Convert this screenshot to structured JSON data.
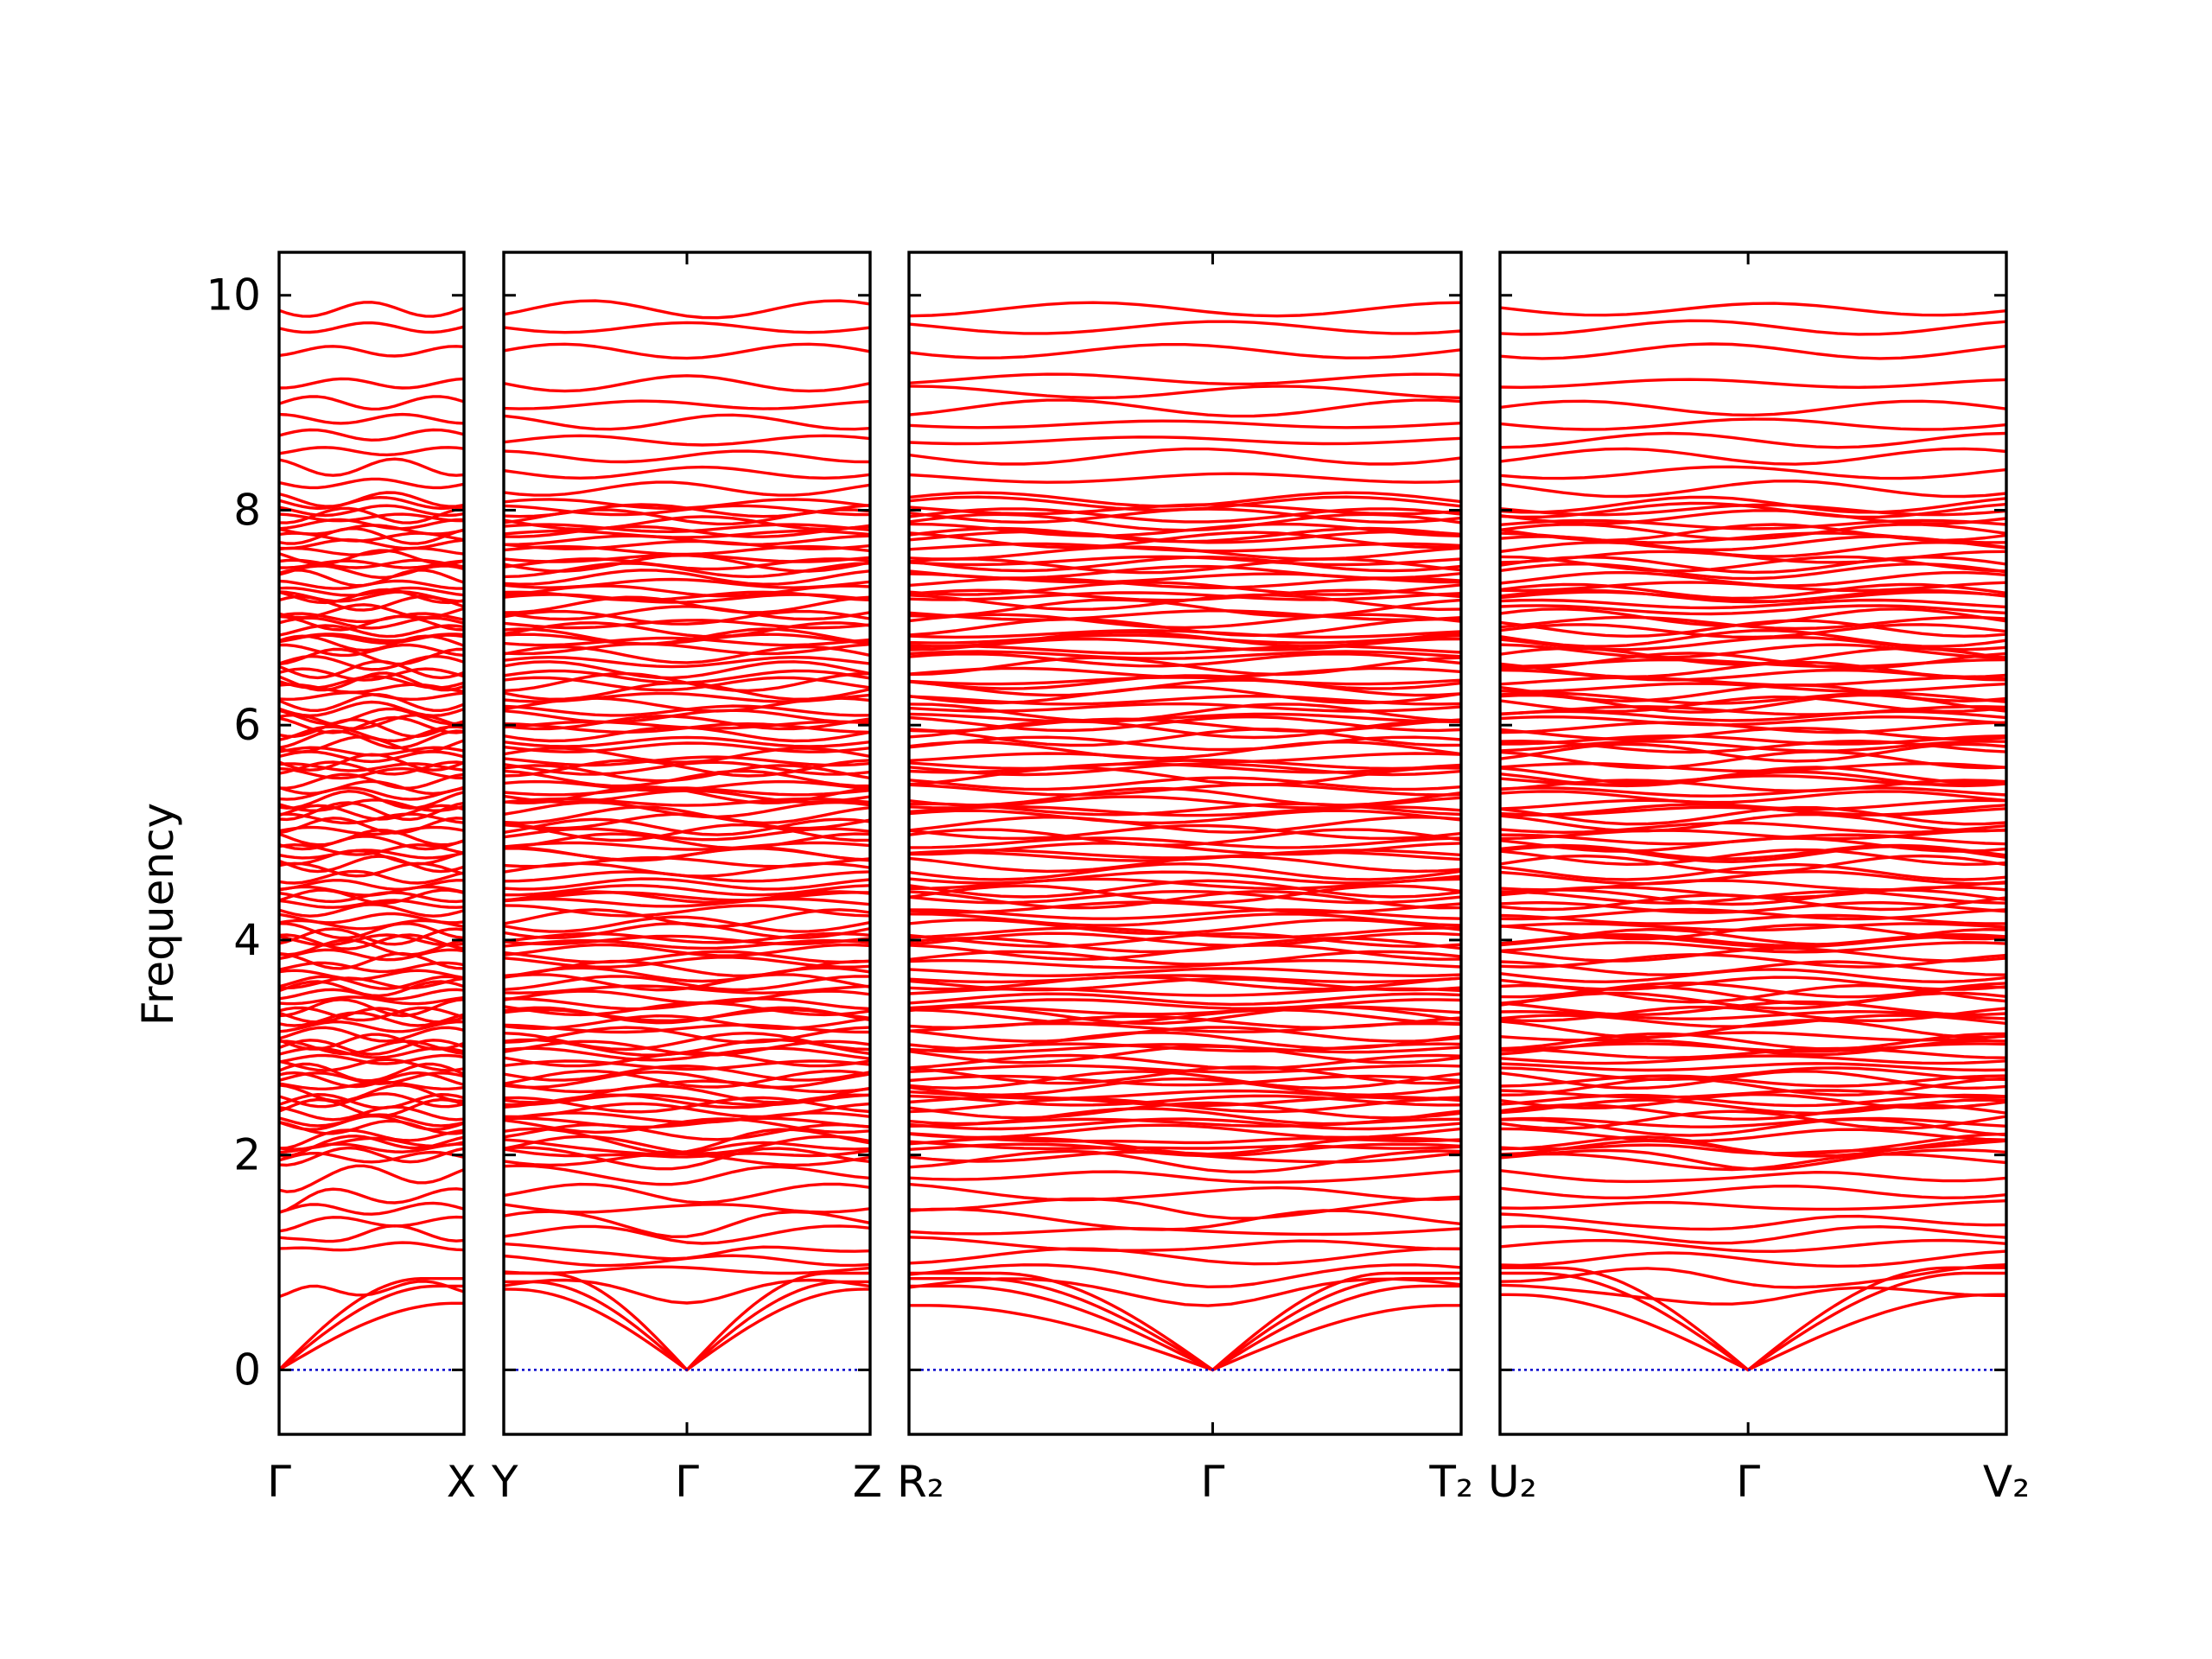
{
  "chart_data": {
    "type": "line",
    "ylabel": "Frequency",
    "ylim": [
      -0.6,
      10.4
    ],
    "yticks": [
      0,
      2,
      4,
      6,
      8,
      10
    ],
    "grid": false,
    "line_color": "#ff0000",
    "zero_line_color": "#0000cc",
    "panels": [
      {
        "labels": [
          "Γ",
          "X"
        ],
        "tick_positions": [
          0,
          1
        ],
        "acoustic_endpoints": [
          0.62,
          0.78,
          0.85
        ],
        "optical": [
          0.76,
          1.15,
          1.27,
          1.38,
          1.5,
          1.62,
          1.82,
          1.98,
          2.12,
          2.3,
          2.5,
          2.7,
          3.0,
          3.3,
          3.6,
          4.0,
          4.4,
          4.8,
          5.2,
          5.6,
          6.0,
          6.4,
          6.8,
          6.95,
          7.2,
          7.5,
          7.75,
          7.95,
          8.1,
          8.25,
          8.4,
          8.55,
          8.7,
          8.85,
          9.0,
          9.18,
          9.48,
          9.7,
          9.87
        ]
      },
      {
        "labels": [
          "Y",
          "Γ",
          "Z"
        ],
        "tick_positions": [
          0,
          0.5,
          1
        ],
        "acoustic_endpoints": [
          0.75,
          0.82,
          0.9
        ],
        "optical": [
          0.78,
          0.93,
          1.02,
          1.14,
          1.28,
          1.4,
          1.52,
          1.66,
          1.84,
          1.96,
          2.1,
          2.3,
          2.5,
          2.7,
          3.0,
          3.3,
          3.6,
          4.0,
          4.4,
          4.8,
          5.0,
          5.35,
          5.6,
          6.0,
          6.4,
          6.8,
          7.2,
          7.5,
          7.8,
          8.0,
          8.2,
          8.35,
          8.5,
          8.65,
          8.82,
          8.98,
          9.18,
          9.48,
          9.7,
          9.87
        ]
      },
      {
        "labels": [
          "R₂",
          "Γ",
          "T₂"
        ],
        "tick_positions": [
          0,
          0.55,
          1
        ],
        "acoustic_endpoints": [
          0.6,
          0.78,
          0.85,
          0.9
        ],
        "optical": [
          0.78,
          0.92,
          1.06,
          1.18,
          1.3,
          1.42,
          1.55,
          1.66,
          1.82,
          1.96,
          2.1,
          2.3,
          2.5,
          2.7,
          3.0,
          3.3,
          3.6,
          4.0,
          4.4,
          4.8,
          5.2,
          5.6,
          6.0,
          6.4,
          6.8,
          7.2,
          7.5,
          7.75,
          7.95,
          8.1,
          8.3,
          8.5,
          8.65,
          8.8,
          8.95,
          9.1,
          9.22,
          9.48,
          9.7,
          9.87
        ]
      },
      {
        "labels": [
          "U₂",
          "Γ",
          "V₂"
        ],
        "tick_positions": [
          0,
          0.49,
          1
        ],
        "acoustic_endpoints": [
          0.7,
          0.9,
          0.95
        ],
        "optical": [
          0.74,
          0.9,
          1.04,
          1.16,
          1.28,
          1.4,
          1.54,
          1.66,
          1.82,
          1.96,
          2.1,
          2.3,
          2.5,
          2.7,
          3.0,
          3.3,
          3.5,
          4.0,
          4.4,
          4.8,
          5.2,
          5.5,
          5.8,
          6.2,
          6.6,
          6.9,
          7.2,
          7.5,
          7.8,
          8.0,
          8.2,
          8.35,
          8.5,
          8.65,
          8.8,
          8.95,
          9.18,
          9.48,
          9.7,
          9.87
        ]
      }
    ]
  }
}
